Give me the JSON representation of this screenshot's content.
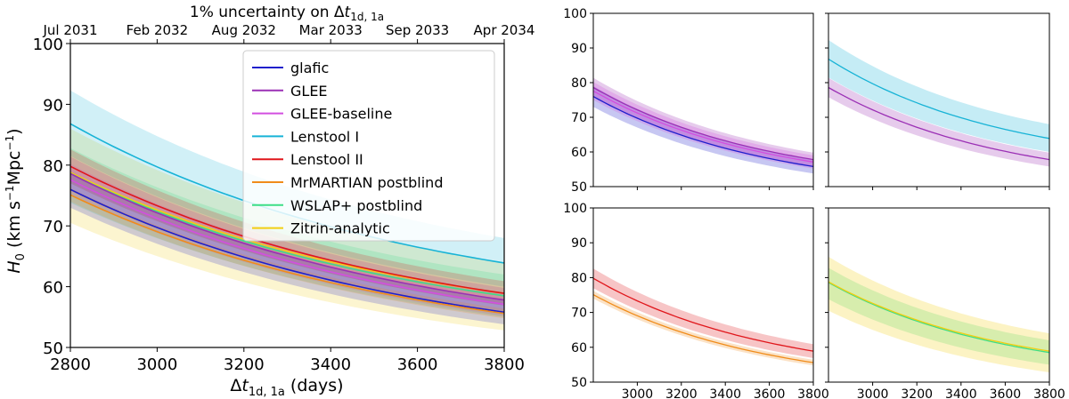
{
  "chart_data": [
    {
      "type": "line",
      "panel": "main",
      "title": "1% uncertainty on Δt_1d,1a",
      "title_parts": {
        "base": "1% uncertainty on Δ",
        "var": "t",
        "sub": "1d, 1a"
      },
      "xlabel": "Δt_1d,1a (days)",
      "xlabel_parts": {
        "pre": "Δ",
        "var": "t",
        "sub": "1d, 1a",
        "post": " (days)"
      },
      "ylabel": "H_0 (km s^-1 Mpc^-1)",
      "ylabel_parts": {
        "var": "H",
        "sub": "0",
        "units": " (km s",
        "exp1": "−1",
        "mid": "Mpc",
        "exp2": "−1",
        "close": ")"
      },
      "xlim": [
        2800,
        3800
      ],
      "ylim": [
        50,
        100
      ],
      "xticks": [
        2800,
        3000,
        3200,
        3400,
        3600,
        3800
      ],
      "yticks": [
        50,
        60,
        70,
        80,
        90,
        100
      ],
      "top_axis_ticks": [
        "Jul 2031",
        "Feb 2032",
        "Aug 2032",
        "Mar 2033",
        "Sep 2033",
        "Apr 2034"
      ],
      "legend_placement": "upper-center",
      "x": [
        2800,
        3800
      ],
      "series": [
        {
          "name": "glafic",
          "color": "#1f1fcc",
          "start": [
            76.0,
            73.0,
            79.0
          ],
          "end": [
            55.8,
            53.8,
            57.8
          ]
        },
        {
          "name": "GLEE",
          "color": "#9b30b5",
          "start": [
            78.6,
            75.8,
            81.4
          ],
          "end": [
            57.8,
            55.8,
            59.8
          ]
        },
        {
          "name": "GLEE-baseline",
          "color": "#d24fe0",
          "start": [
            77.6,
            75.0,
            80.2
          ],
          "end": [
            57.1,
            55.2,
            59.0
          ]
        },
        {
          "name": "Lenstool I",
          "color": "#17b3d6",
          "start": [
            86.8,
            81.5,
            92.3
          ],
          "end": [
            63.9,
            60.0,
            68.0
          ]
        },
        {
          "name": "Lenstool II",
          "color": "#e0161b",
          "start": [
            79.8,
            77.0,
            82.6
          ],
          "end": [
            58.9,
            56.9,
            60.9
          ]
        },
        {
          "name": "MrMARTIAN postblind",
          "color": "#f08c1a",
          "start": [
            75.1,
            74.0,
            76.2
          ],
          "end": [
            55.6,
            54.8,
            56.4
          ]
        },
        {
          "name": "WSLAP+ postblind",
          "color": "#3dde86",
          "start": [
            78.6,
            73.8,
            82.8
          ],
          "end": [
            58.5,
            55.0,
            62.0
          ]
        },
        {
          "name": "Zitrin-analytic",
          "color": "#f2ce12",
          "start": [
            78.8,
            70.5,
            86.0
          ],
          "end": [
            58.9,
            52.8,
            64.0
          ]
        }
      ]
    },
    {
      "type": "line",
      "panel": "top-left",
      "xlim": [
        2800,
        3800
      ],
      "ylim": [
        50,
        100
      ],
      "yticks": [
        50,
        60,
        70,
        80,
        90,
        100
      ],
      "series": [
        "glafic",
        "GLEE",
        "GLEE-baseline"
      ]
    },
    {
      "type": "line",
      "panel": "top-right",
      "xlim": [
        2800,
        3800
      ],
      "ylim": [
        50,
        100
      ],
      "series": [
        "GLEE",
        "Lenstool I"
      ]
    },
    {
      "type": "line",
      "panel": "bottom-left",
      "xlim": [
        2800,
        3800
      ],
      "ylim": [
        50,
        100
      ],
      "yticks": [
        50,
        60,
        70,
        80,
        90,
        100
      ],
      "xticks": [
        3000,
        3200,
        3400,
        3600,
        3800
      ],
      "series": [
        "Lenstool II",
        "MrMARTIAN postblind"
      ]
    },
    {
      "type": "line",
      "panel": "bottom-right",
      "xlim": [
        2800,
        3800
      ],
      "ylim": [
        50,
        100
      ],
      "xticks": [
        3000,
        3200,
        3400,
        3600,
        3800
      ],
      "series": [
        "WSLAP+ postblind",
        "Zitrin-analytic"
      ]
    }
  ]
}
